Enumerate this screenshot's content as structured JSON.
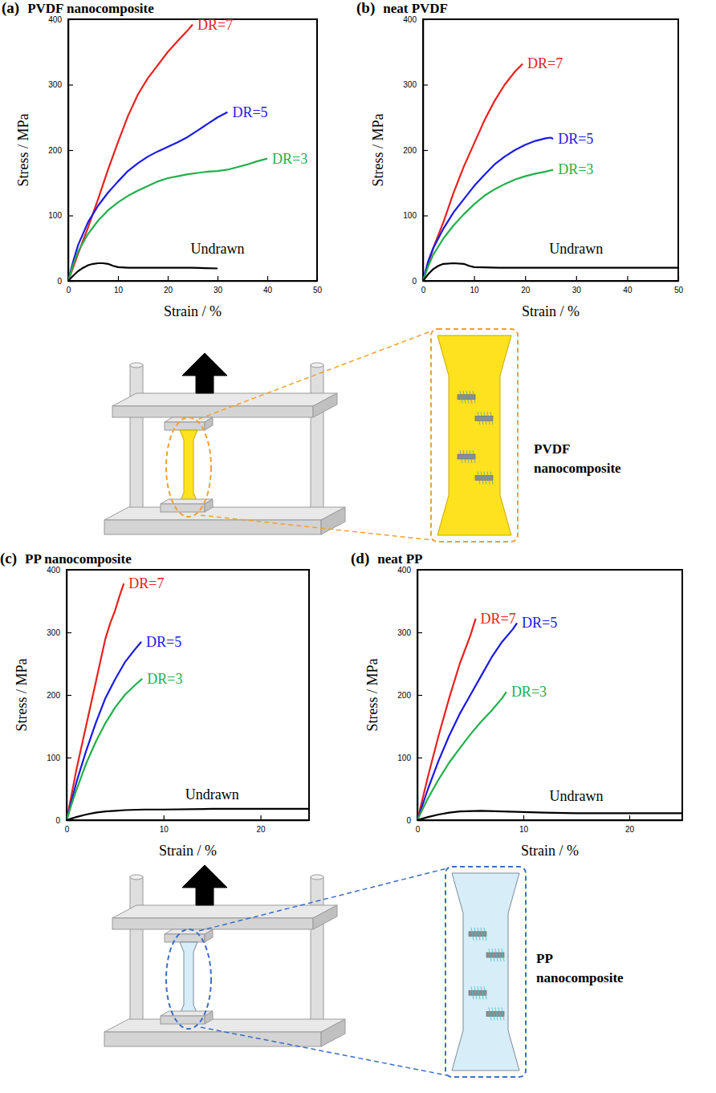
{
  "chart_data": [
    {
      "type": "line",
      "panel_label": "(a)",
      "title": "PVDF nanocomposite",
      "xlabel": "Strain / %",
      "ylabel": "Stress / MPa",
      "xlim": [
        0,
        50
      ],
      "ylim": [
        0,
        400
      ],
      "xticks": [
        0,
        10,
        20,
        30,
        40,
        50
      ],
      "yticks": [
        0,
        100,
        200,
        300,
        400
      ],
      "series": [
        {
          "name": "DR=7",
          "color": "#e8211f",
          "x": [
            0,
            2,
            4,
            6,
            8,
            10,
            12,
            14,
            16,
            18,
            20,
            22,
            24,
            25
          ],
          "values": [
            0,
            42,
            82,
            125,
            170,
            212,
            252,
            285,
            310,
            330,
            350,
            367,
            383,
            392
          ]
        },
        {
          "name": "DR=5",
          "color": "#1a1ae6",
          "x": [
            0,
            1,
            2,
            4,
            6,
            8,
            10,
            12,
            14,
            16,
            18,
            20,
            22,
            24,
            26,
            28,
            30,
            32
          ],
          "values": [
            0,
            30,
            55,
            90,
            115,
            135,
            152,
            168,
            180,
            190,
            198,
            205,
            212,
            220,
            230,
            240,
            250,
            258
          ]
        },
        {
          "name": "DR=3",
          "color": "#21b04b",
          "x": [
            0,
            1,
            2,
            4,
            6,
            8,
            10,
            12,
            14,
            16,
            18,
            20,
            22,
            24,
            26,
            28,
            30,
            32,
            34,
            36,
            38,
            40
          ],
          "values": [
            0,
            25,
            45,
            72,
            92,
            108,
            120,
            130,
            138,
            145,
            152,
            157,
            160,
            163,
            165,
            167,
            168,
            170,
            174,
            178,
            183,
            187
          ]
        },
        {
          "name": "Undrawn",
          "color": "#000000",
          "x": [
            0,
            1,
            2,
            3,
            4,
            5,
            6,
            7,
            8,
            9,
            10,
            12,
            15,
            20,
            25,
            30
          ],
          "values": [
            0,
            8,
            15,
            20,
            24,
            26,
            27,
            27,
            26,
            23,
            21,
            20,
            20,
            20,
            20,
            19
          ]
        }
      ]
    },
    {
      "type": "line",
      "panel_label": "(b)",
      "title": "neat PVDF",
      "xlabel": "Strain / %",
      "ylabel": "Stress / MPa",
      "xlim": [
        0,
        50
      ],
      "ylim": [
        0,
        400
      ],
      "xticks": [
        0,
        10,
        20,
        30,
        40,
        50
      ],
      "yticks": [
        0,
        100,
        200,
        300,
        400
      ],
      "series": [
        {
          "name": "DR=7",
          "color": "#e8211f",
          "x": [
            0,
            1,
            2,
            4,
            6,
            8,
            10,
            12,
            14,
            16,
            18,
            19.5
          ],
          "values": [
            0,
            25,
            50,
            90,
            135,
            175,
            210,
            245,
            275,
            300,
            320,
            332
          ]
        },
        {
          "name": "DR=5",
          "color": "#1a1ae6",
          "x": [
            0,
            1,
            2,
            4,
            6,
            8,
            10,
            12,
            14,
            16,
            18,
            20,
            22,
            24,
            25,
            25.5
          ],
          "values": [
            0,
            30,
            50,
            80,
            105,
            125,
            145,
            162,
            178,
            190,
            200,
            208,
            214,
            218,
            219,
            217
          ]
        },
        {
          "name": "DR=3",
          "color": "#21b04b",
          "x": [
            0,
            1,
            2,
            4,
            6,
            8,
            10,
            12,
            14,
            16,
            18,
            20,
            22,
            24,
            25.5
          ],
          "values": [
            0,
            22,
            40,
            65,
            85,
            102,
            117,
            130,
            140,
            148,
            155,
            160,
            164,
            167,
            170
          ]
        },
        {
          "name": "Undrawn",
          "color": "#000000",
          "x": [
            0,
            1,
            2,
            3,
            4,
            6,
            8,
            9,
            10,
            15,
            20,
            30,
            40,
            50
          ],
          "values": [
            0,
            10,
            18,
            23,
            26,
            27,
            26,
            23,
            21,
            20,
            20,
            20,
            20,
            20
          ]
        }
      ]
    },
    {
      "type": "line",
      "panel_label": "(c)",
      "title": "PP nanocomposite",
      "xlabel": "Strain / %",
      "ylabel": "Stress / MPa",
      "xlim": [
        0,
        25
      ],
      "ylim": [
        0,
        400
      ],
      "xticks": [
        0,
        10,
        20
      ],
      "yticks": [
        0,
        100,
        200,
        300,
        400
      ],
      "series": [
        {
          "name": "DR=7",
          "color": "#e8211f",
          "x": [
            0,
            0.5,
            1,
            1.5,
            2,
            2.5,
            3,
            3.5,
            4,
            4.5,
            5,
            5.5,
            5.9
          ],
          "values": [
            0,
            40,
            80,
            115,
            150,
            185,
            220,
            255,
            290,
            315,
            335,
            360,
            378
          ]
        },
        {
          "name": "DR=5",
          "color": "#1a1ae6",
          "x": [
            0,
            0.5,
            1,
            2,
            3,
            4,
            5,
            6,
            7,
            7.6,
            7.7
          ],
          "values": [
            0,
            30,
            60,
            110,
            155,
            195,
            225,
            252,
            272,
            283,
            285
          ]
        },
        {
          "name": "DR=3",
          "color": "#21b04b",
          "x": [
            0,
            0.5,
            1,
            2,
            3,
            4,
            5,
            6,
            7,
            7.8
          ],
          "values": [
            0,
            25,
            48,
            90,
            125,
            155,
            180,
            200,
            215,
            226
          ]
        },
        {
          "name": "Undrawn",
          "color": "#000000",
          "x": [
            0,
            1,
            2,
            3,
            4,
            5,
            6,
            8,
            10,
            15,
            20,
            25
          ],
          "values": [
            0,
            5,
            9,
            12,
            14,
            15,
            16,
            17,
            17,
            18,
            18,
            18
          ]
        }
      ]
    },
    {
      "type": "line",
      "panel_label": "(d)",
      "title": "neat PP",
      "xlabel": "Strain / %",
      "ylabel": "Stress / MPa",
      "xlim": [
        0,
        25
      ],
      "ylim": [
        0,
        400
      ],
      "xticks": [
        0,
        10,
        20
      ],
      "yticks": [
        0,
        100,
        200,
        300,
        400
      ],
      "series": [
        {
          "name": "DR=7",
          "color": "#e8211f",
          "x": [
            0,
            0.5,
            1,
            2,
            3,
            4,
            5,
            5.5
          ],
          "values": [
            0,
            35,
            70,
            135,
            195,
            250,
            295,
            322
          ]
        },
        {
          "name": "DR=5",
          "color": "#1a1ae6",
          "x": [
            0,
            0.5,
            1,
            2,
            3,
            4,
            5,
            6,
            7,
            8,
            9,
            9.4
          ],
          "values": [
            0,
            25,
            50,
            95,
            135,
            170,
            200,
            230,
            260,
            285,
            305,
            315
          ]
        },
        {
          "name": "DR=3",
          "color": "#21b04b",
          "x": [
            0,
            0.5,
            1,
            2,
            3,
            4,
            5,
            6,
            7,
            8,
            8.4
          ],
          "values": [
            0,
            18,
            35,
            65,
            92,
            115,
            137,
            157,
            175,
            195,
            205
          ]
        },
        {
          "name": "Undrawn",
          "color": "#000000",
          "x": [
            0,
            1,
            2,
            3,
            4,
            6,
            8,
            10,
            12,
            15,
            20,
            25
          ],
          "values": [
            0,
            5,
            9,
            12,
            14,
            15,
            14,
            13,
            12,
            11,
            11,
            11
          ]
        }
      ]
    }
  ],
  "diagrams": [
    {
      "label": "PVDF nanocomposite"
    },
    {
      "label": "PP nanocomposite"
    }
  ]
}
